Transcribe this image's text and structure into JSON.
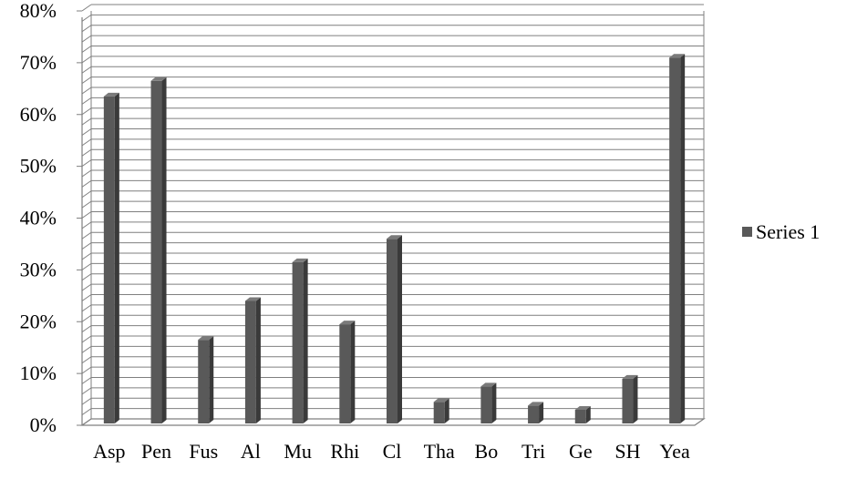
{
  "chart_data": {
    "type": "bar",
    "categories": [
      "Asp",
      "Pen",
      "Fus",
      "Al",
      "Mu",
      "Rhi",
      "Cl",
      "Tha",
      "Bo",
      "Tri",
      "Ge",
      "SH",
      "Yea"
    ],
    "series": [
      {
        "name": "Series 1",
        "values": [
          63.5,
          66.5,
          16.5,
          24,
          31.5,
          19.5,
          36,
          4.5,
          7.5,
          3.8,
          3,
          9,
          71
        ]
      }
    ],
    "title": "",
    "xlabel": "",
    "ylabel": "",
    "ylim": [
      0,
      80
    ],
    "y_ticks": [
      "0%",
      "10%",
      "20%",
      "30%",
      "40%",
      "50%",
      "60%",
      "70%",
      "80%"
    ],
    "grid": true,
    "legend_position": "right",
    "colors": {
      "bar_face": "#595959",
      "bar_side": "#3a3a3a",
      "bar_top": "#7a7a7a",
      "grid": "#7f7f7f",
      "axis": "#7f7f7f",
      "legend_swatch": "#595959"
    }
  }
}
